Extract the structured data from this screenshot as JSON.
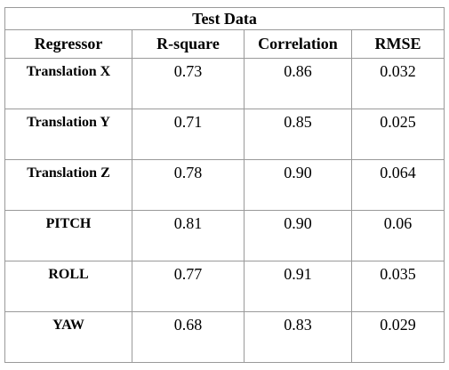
{
  "table": {
    "title": "Test Data",
    "columns": [
      "Regressor",
      "R-square",
      "Correlation",
      "RMSE"
    ],
    "rows": [
      {
        "regressor": "Translation X",
        "r_square": "0.73",
        "correlation": "0.86",
        "rmse": "0.032"
      },
      {
        "regressor": "Translation Y",
        "r_square": "0.71",
        "correlation": "0.85",
        "rmse": "0.025"
      },
      {
        "regressor": "Translation Z",
        "r_square": "0.78",
        "correlation": "0.90",
        "rmse": "0.064"
      },
      {
        "regressor": "PITCH",
        "r_square": "0.81",
        "correlation": "0.90",
        "rmse": "0.06"
      },
      {
        "regressor": "ROLL",
        "r_square": "0.77",
        "correlation": "0.91",
        "rmse": "0.035"
      },
      {
        "regressor": "YAW",
        "r_square": "0.68",
        "correlation": "0.83",
        "rmse": "0.029"
      }
    ]
  }
}
